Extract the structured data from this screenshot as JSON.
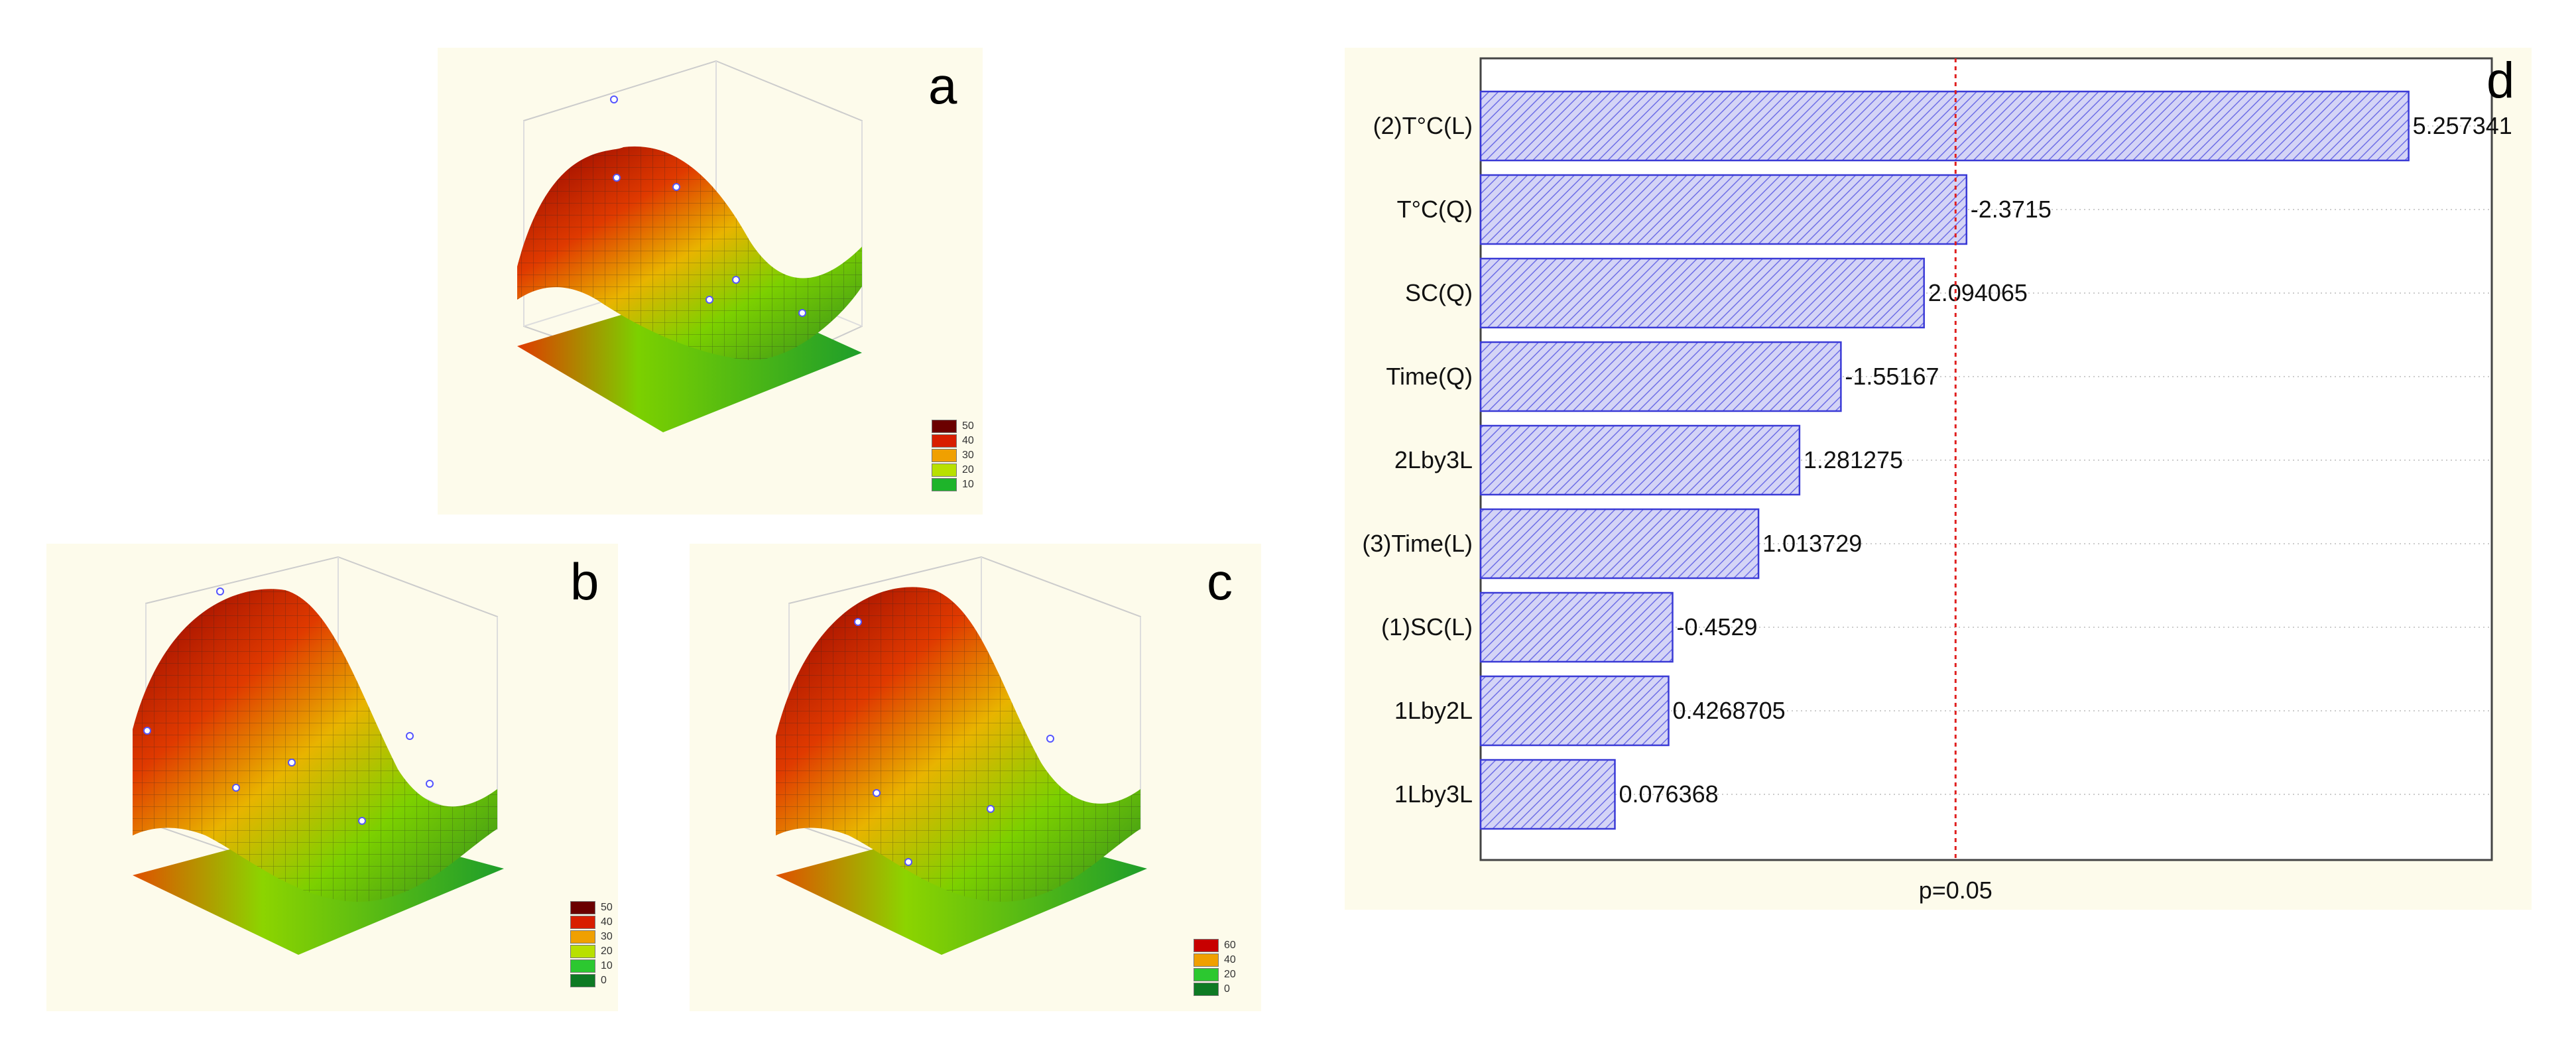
{
  "panels": {
    "a": {
      "letter": "a",
      "legend": [
        "50",
        "40",
        "30",
        "20",
        "10"
      ]
    },
    "b": {
      "letter": "b",
      "legend": [
        "50",
        "40",
        "30",
        "20",
        "10",
        "0"
      ]
    },
    "c": {
      "letter": "c",
      "legend": [
        "60",
        "40",
        "20",
        "0"
      ]
    }
  },
  "colors": {
    "panel_bg": "#fdfbeb",
    "bar_fill": "#c9c9f3",
    "bar_stroke": "#3a3ad6",
    "threshold": "#e02020",
    "surface_hi": "#8b0000",
    "surface_mid": "#e03a00",
    "surface_low": "#58c814"
  },
  "chart_data": {
    "type": "bar",
    "orientation": "horizontal",
    "title": "",
    "panel_letter": "d",
    "categories": [
      "(2)T°C(L)",
      "T°C(Q)",
      "SC(Q)",
      "Time(Q)",
      "2Lby3L",
      "(3)Time(L)",
      "(1)SC(L)",
      "1Lby2L",
      "1Lby3L"
    ],
    "values": [
      5.257341,
      -2.3715,
      2.094065,
      -1.55167,
      1.281275,
      1.013729,
      -0.4529,
      0.4268705,
      0.076368
    ],
    "value_labels": [
      "5.257341",
      "-2.3715",
      "2.094065",
      "-1.55167",
      "1.281275",
      "1.013729",
      "-0.4529",
      "0.4268705",
      "0.076368"
    ],
    "threshold": {
      "value": 2.3,
      "label": "p=0.05"
    },
    "xlabel": "p=0.05",
    "xlim": [
      -0.8,
      5.8
    ],
    "grid": true
  }
}
